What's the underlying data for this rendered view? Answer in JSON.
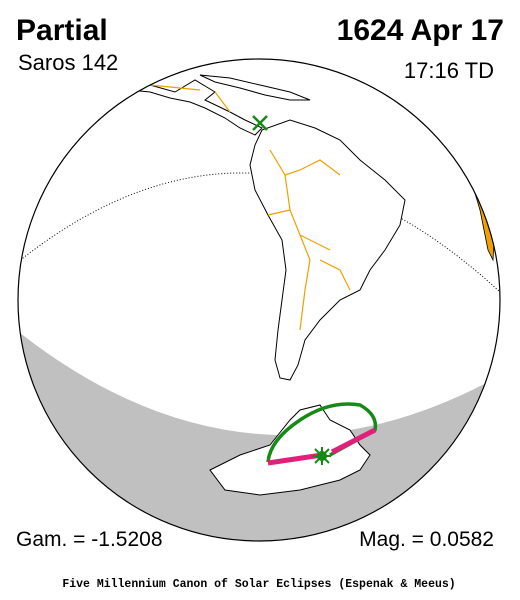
{
  "header": {
    "eclipse_type": "Partial",
    "date": "1624 Apr 17",
    "saros": "Saros 142",
    "time": "17:16 TD"
  },
  "footer_stats": {
    "gamma": "Gam. = -1.5208",
    "magnitude": "Mag. = 0.0582"
  },
  "credit": "Five Millennium Canon of Solar Eclipses (Espenak & Meeus)"
}
